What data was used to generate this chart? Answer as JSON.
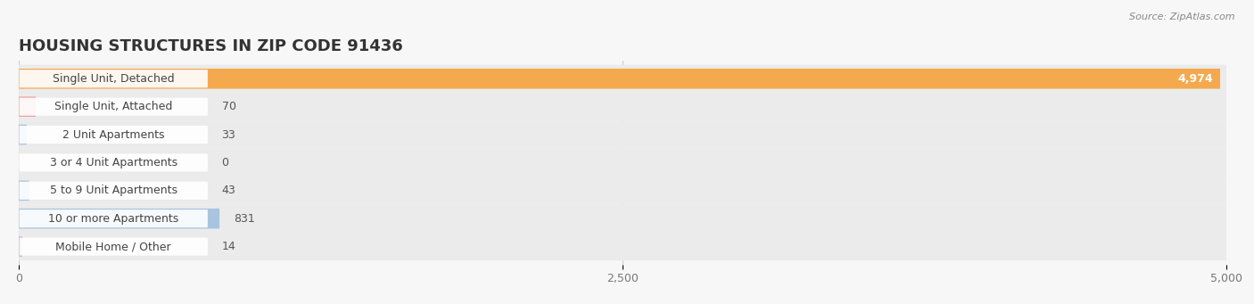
{
  "title": "HOUSING STRUCTURES IN ZIP CODE 91436",
  "source": "Source: ZipAtlas.com",
  "categories": [
    "Single Unit, Detached",
    "Single Unit, Attached",
    "2 Unit Apartments",
    "3 or 4 Unit Apartments",
    "5 to 9 Unit Apartments",
    "10 or more Apartments",
    "Mobile Home / Other"
  ],
  "values": [
    4974,
    70,
    33,
    0,
    43,
    831,
    14
  ],
  "bar_colors": [
    "#F5A94E",
    "#F2A0A0",
    "#A8C4E0",
    "#A8C4E0",
    "#A8C4E0",
    "#A8C4E0",
    "#C8AECE"
  ],
  "bg_color_rows": [
    "#F5F5F5",
    "#F5F5F5",
    "#F5F5F5",
    "#F5F5F5",
    "#F5F5F5",
    "#F5F5F5",
    "#F5F5F5"
  ],
  "bg_bar_color": "#EBEBEB",
  "xlim": [
    0,
    5000
  ],
  "xticks": [
    0,
    2500,
    5000
  ],
  "value_labels": [
    "4,974",
    "70",
    "33",
    "0",
    "43",
    "831",
    "14"
  ],
  "title_fontsize": 13,
  "label_fontsize": 9,
  "value_fontsize": 9,
  "background_color": "#F7F7F7",
  "row_alt_color": "#EEEEEE",
  "separator_color": "#DDDDDD",
  "grid_color": "#CCCCCC"
}
